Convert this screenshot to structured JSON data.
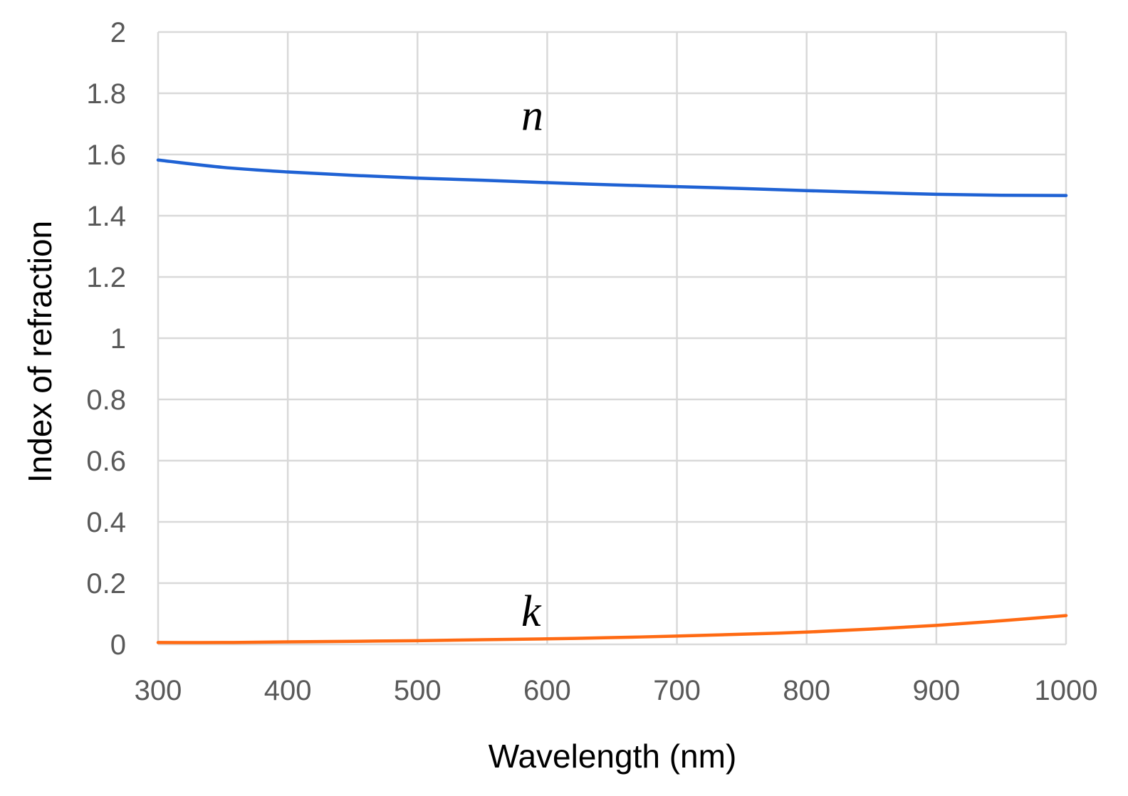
{
  "chart_data": {
    "type": "line",
    "title": "",
    "xlabel": "Wavelength (nm)",
    "ylabel": "Index of refraction",
    "xlim": [
      300,
      1000
    ],
    "ylim": [
      0,
      2
    ],
    "xticks": [
      300,
      400,
      500,
      600,
      700,
      800,
      900,
      1000
    ],
    "xtick_labels": [
      "300",
      "400",
      "500",
      "600",
      "700",
      "800",
      "900",
      "1000"
    ],
    "yticks": [
      0,
      0.2,
      0.4,
      0.6,
      0.8,
      1,
      1.2,
      1.4,
      1.6,
      1.8,
      2
    ],
    "ytick_labels": [
      "0",
      "0.2",
      "0.4",
      "0.6",
      "0.8",
      "1",
      "1.2",
      "1.4",
      "1.6",
      "1.8",
      "2"
    ],
    "grid": true,
    "legend": "none",
    "series": [
      {
        "name": "n",
        "color": "#1f62d4",
        "label_anchor": {
          "x": 580,
          "y": 1.68
        },
        "x": [
          300,
          350,
          400,
          450,
          500,
          550,
          600,
          650,
          700,
          750,
          800,
          850,
          900,
          950,
          1000
        ],
        "values": [
          1.582,
          1.558,
          1.543,
          1.532,
          1.523,
          1.516,
          1.508,
          1.501,
          1.495,
          1.489,
          1.482,
          1.476,
          1.47,
          1.467,
          1.466
        ]
      },
      {
        "name": "k",
        "color": "#ff6a13",
        "label_anchor": {
          "x": 580,
          "y": 0.06
        },
        "x": [
          300,
          350,
          400,
          450,
          500,
          550,
          600,
          650,
          700,
          750,
          800,
          850,
          900,
          950,
          1000
        ],
        "values": [
          0.006,
          0.006,
          0.008,
          0.01,
          0.012,
          0.015,
          0.018,
          0.022,
          0.027,
          0.033,
          0.04,
          0.05,
          0.062,
          0.077,
          0.094
        ]
      }
    ]
  }
}
